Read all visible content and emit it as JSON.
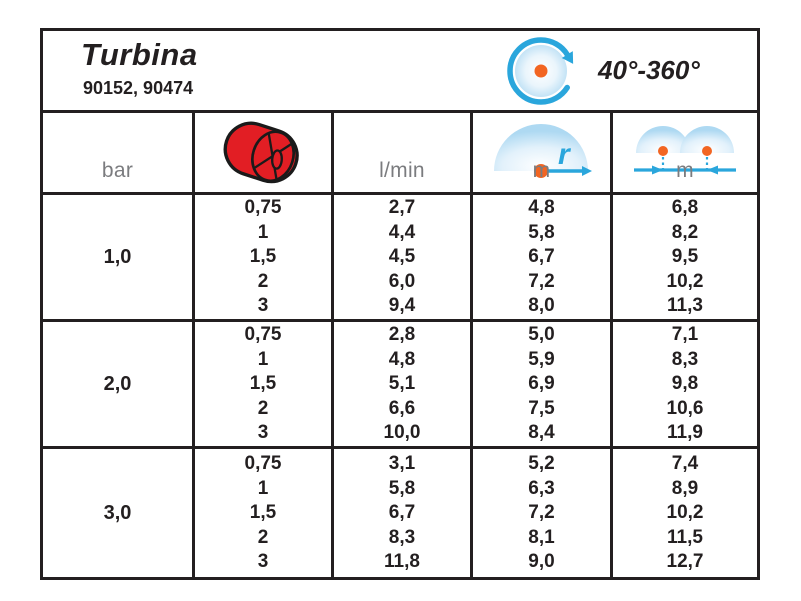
{
  "product": {
    "title": "Turbina",
    "models": "90152, 90474",
    "rotation_range": "40°-360°"
  },
  "icons": {
    "rotation": "rotating-sprinkler-icon",
    "nozzle": "red-nozzle-icon",
    "radius": "throw-radius-icon",
    "radius_letter": "r",
    "spacing": "sprinkler-spacing-icon"
  },
  "colors": {
    "text": "#231f20",
    "border": "#231f20",
    "unit_gray": "#7b7c7f",
    "nozzle_red": "#e21e24",
    "water_blue": "#2aa6dc",
    "dot_orange": "#f26522",
    "dome_fill_light": "#ffffff",
    "dome_fill_edge": "#aed9f2"
  },
  "table": {
    "column_headers": [
      {
        "unit": "bar"
      },
      {
        "unit": ""
      },
      {
        "unit": "l/min"
      },
      {
        "unit": "m"
      },
      {
        "unit": "m"
      }
    ],
    "rows": [
      {
        "bar": "1,0",
        "nozzle_sizes": [
          "0,75",
          "1",
          "1,5",
          "2",
          "3"
        ],
        "flow_lmin": [
          "2,7",
          "4,4",
          "4,5",
          "6,0",
          "9,4"
        ],
        "radius_m": [
          "4,8",
          "5,8",
          "6,7",
          "7,2",
          "8,0"
        ],
        "diameter_m": [
          "6,8",
          "8,2",
          "9,5",
          "10,2",
          "11,3"
        ]
      },
      {
        "bar": "2,0",
        "nozzle_sizes": [
          "0,75",
          "1",
          "1,5",
          "2",
          "3"
        ],
        "flow_lmin": [
          "2,8",
          "4,8",
          "5,1",
          "6,6",
          "10,0"
        ],
        "radius_m": [
          "5,0",
          "5,9",
          "6,9",
          "7,5",
          "8,4"
        ],
        "diameter_m": [
          "7,1",
          "8,3",
          "9,8",
          "10,6",
          "11,9"
        ]
      },
      {
        "bar": "3,0",
        "nozzle_sizes": [
          "0,75",
          "1",
          "1,5",
          "2",
          "3"
        ],
        "flow_lmin": [
          "3,1",
          "5,8",
          "6,7",
          "8,3",
          "11,8"
        ],
        "radius_m": [
          "5,2",
          "6,3",
          "7,2",
          "8,1",
          "9,0"
        ],
        "diameter_m": [
          "7,4",
          "8,9",
          "10,2",
          "11,5",
          "12,7"
        ]
      }
    ]
  }
}
